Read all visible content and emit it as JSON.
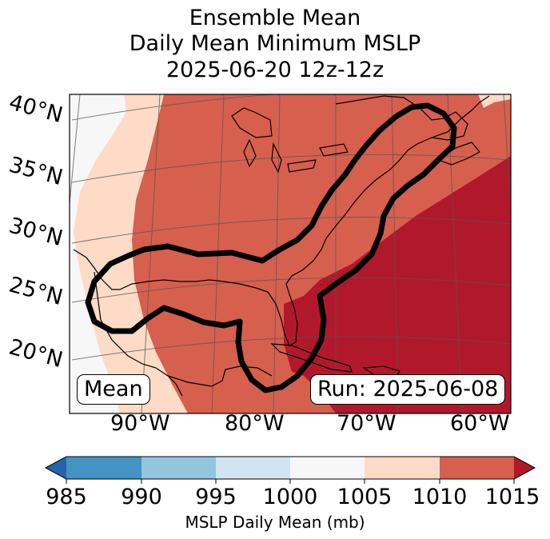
{
  "title": {
    "line1": "Ensemble Mean",
    "line2": "Daily Mean Minimum MSLP",
    "line3": "2025-06-20 12z-12z"
  },
  "map": {
    "lat_labels": [
      "40°N",
      "35°N",
      "30°N",
      "25°N",
      "20°N"
    ],
    "lon_labels": [
      "90°W",
      "80°W",
      "70°W",
      "60°W"
    ],
    "mean_box": "Mean",
    "run_box": "Run: 2025-06-08",
    "colors": {
      "c1000": "#f7f7f7",
      "c1005": "#fddbc7",
      "c1010": "#d6604d",
      "c1015": "#b2182b"
    }
  },
  "colorbar": {
    "ticks": [
      "985",
      "990",
      "995",
      "1000",
      "1005",
      "1010",
      "1015"
    ],
    "label": "MSLP Daily Mean (mb)",
    "colors": [
      "#2166ac",
      "#4393c3",
      "#92c5de",
      "#d1e5f0",
      "#f7f7f7",
      "#fddbc7",
      "#d6604d",
      "#b2182b"
    ]
  }
}
